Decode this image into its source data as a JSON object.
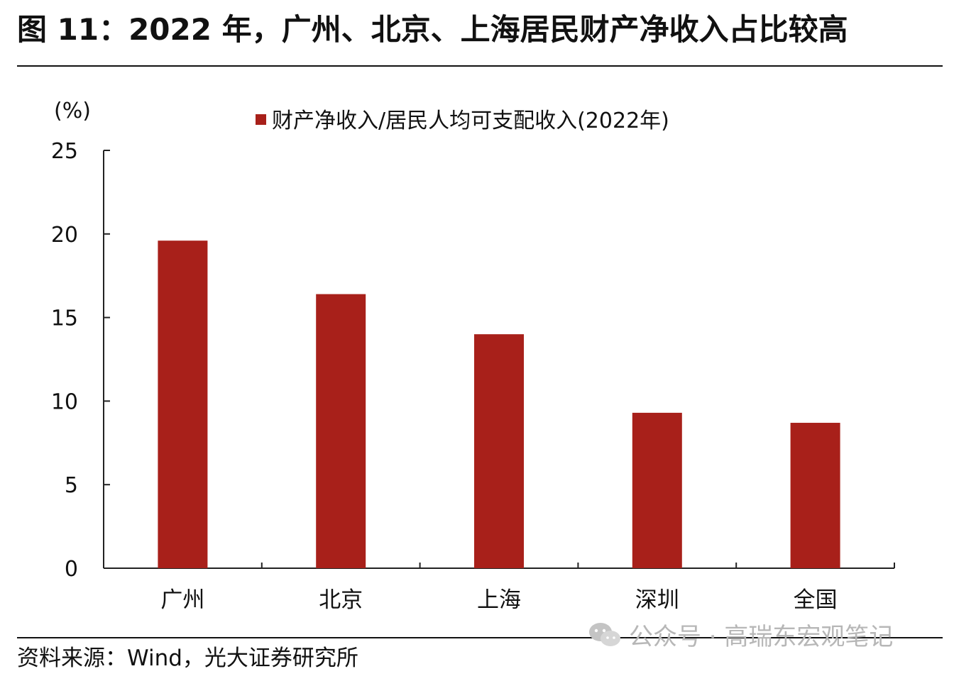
{
  "figure": {
    "title": "图 11：2022 年，广州、北京、上海居民财产净收入占比较高",
    "source": "资料来源：Wind，光大证券研究所",
    "watermark": "公众号 · 高瑞东宏观笔记"
  },
  "colors": {
    "bar": "#A8201A",
    "axis": "#222222",
    "text": "#111111"
  },
  "chart_data": {
    "type": "bar",
    "title": "",
    "ylabel": "(%)",
    "xlabel": "",
    "ylim": [
      0,
      25
    ],
    "yticks": [
      0,
      5,
      10,
      15,
      20,
      25
    ],
    "grid": false,
    "legend_position": "top-center",
    "categories": [
      "广州",
      "北京",
      "上海",
      "深圳",
      "全国"
    ],
    "series": [
      {
        "name": "财产净收入/居民人均可支配收入(2022年)",
        "values": [
          19.6,
          16.4,
          14.0,
          9.3,
          8.7
        ]
      }
    ]
  }
}
